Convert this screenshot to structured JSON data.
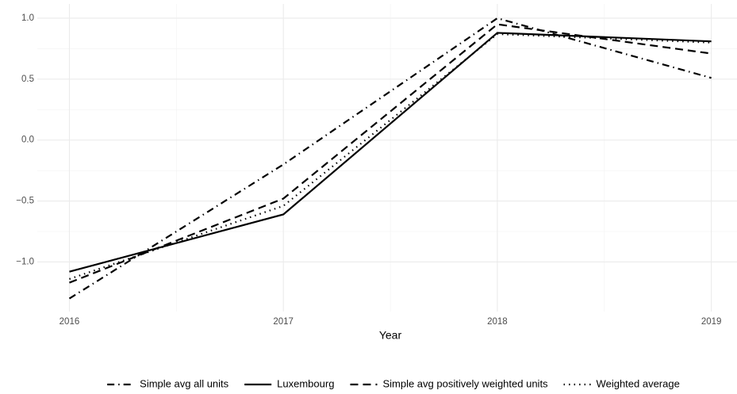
{
  "chart_data": {
    "type": "line",
    "x": [
      2016,
      2017,
      2018,
      2019
    ],
    "xlabel": "Year",
    "xlim": [
      2015.85,
      2019.12
    ],
    "xticks": [
      2016,
      2017,
      2018,
      2019
    ],
    "ylim": [
      -1.407,
      1.117
    ],
    "yticks": [
      {
        "value": 1,
        "label": "1.0"
      },
      {
        "value": 0.5,
        "label": "0.5"
      },
      {
        "value": 0,
        "label": "0.0"
      },
      {
        "value": -0.5,
        "label": "−0.5"
      },
      {
        "value": -1,
        "label": "−1.0"
      }
    ],
    "grid": true,
    "legend": "bottom",
    "series": [
      {
        "name": "Simple avg all units",
        "color": "#000000",
        "linestyle": "dashdot",
        "values": [
          -1.3,
          -0.2,
          1.0,
          0.51
        ]
      },
      {
        "name": "Luxembourg",
        "color": "#000000",
        "linestyle": "solid",
        "values": [
          -1.08,
          -0.61,
          0.88,
          0.81
        ]
      },
      {
        "name": "Simple avg positively weighted units",
        "color": "#000000",
        "linestyle": "dashed",
        "values": [
          -1.17,
          -0.48,
          0.95,
          0.71
        ]
      },
      {
        "name": "Weighted average",
        "color": "#000000",
        "linestyle": "dotted",
        "values": [
          -1.14,
          -0.54,
          0.87,
          0.8
        ]
      }
    ]
  }
}
